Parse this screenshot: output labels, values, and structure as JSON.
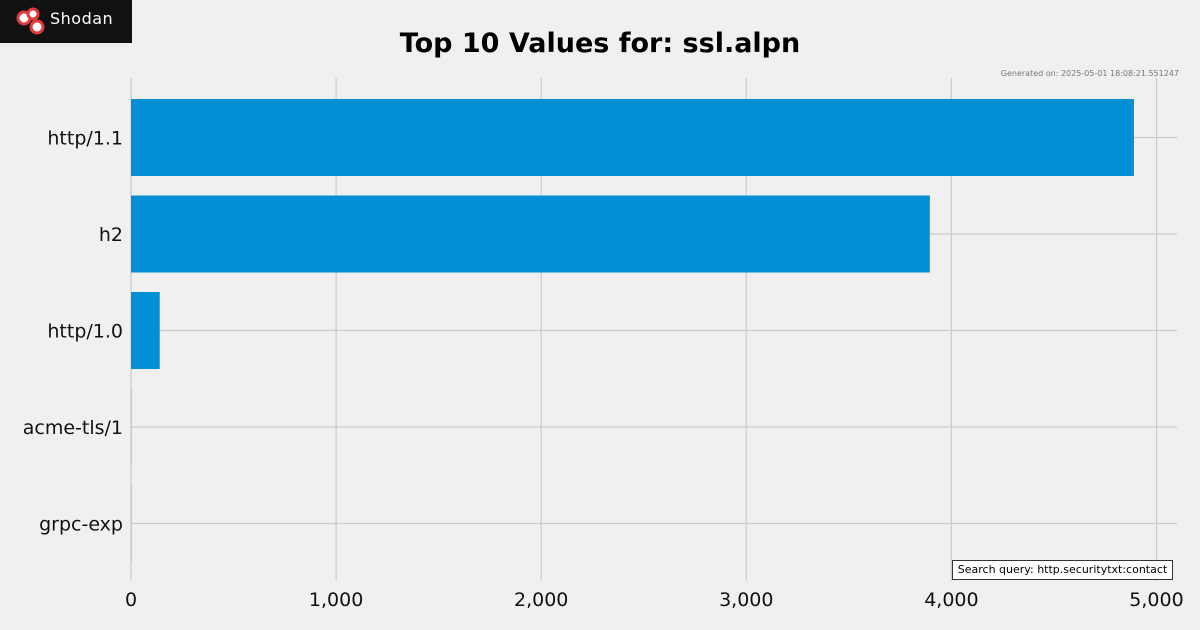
{
  "brand": {
    "name": "Shodan",
    "accent": "#e03a3a"
  },
  "generated": "Generated on: 2025-05-01 18:08:21.551247",
  "search_query": "Search query: http.securitytxt:contact",
  "chart_data": {
    "type": "bar",
    "orientation": "horizontal",
    "title": "Top 10 Values for: ssl.alpn",
    "xlabel": "",
    "ylabel": "",
    "categories": [
      "http/1.1",
      "h2",
      "http/1.0",
      "acme-tls/1",
      "grpc-exp"
    ],
    "values": [
      4890,
      3895,
      140,
      1,
      1
    ],
    "xlim": [
      0,
      5100
    ],
    "xticks": [
      0,
      1000,
      2000,
      3000,
      4000,
      5000
    ],
    "xtick_labels": [
      "0",
      "1,000",
      "2,000",
      "3,000",
      "4,000",
      "5,000"
    ],
    "bar_color": "#038fd6",
    "grid": true
  }
}
